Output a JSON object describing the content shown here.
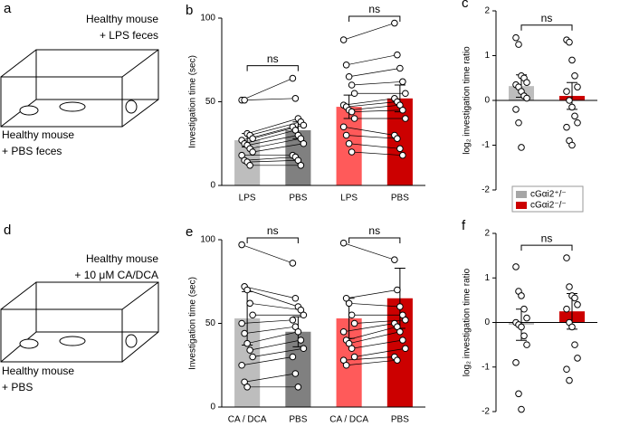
{
  "diagrams": [
    {
      "panel": "a",
      "top_label": [
        "Healthy mouse",
        "+ LPS feces"
      ],
      "bottom_label": [
        "Healthy mouse",
        "+ PBS feces"
      ]
    },
    {
      "panel": "d",
      "top_label": [
        "Healthy mouse",
        "+ 10 μM CA/DCA"
      ],
      "bottom_label": [
        "Healthy mouse",
        "+ PBS"
      ]
    }
  ],
  "chart_data": [
    {
      "panel": "b",
      "type": "bar",
      "y_label": "Investigation time (sec)",
      "categories": [
        "LPS",
        "PBS",
        "LPS",
        "PBS"
      ],
      "values": [
        27,
        33,
        47,
        52
      ],
      "errors": [
        4,
        5,
        7,
        8
      ],
      "colors": [
        "#bdbdbd",
        "#808080",
        "#ff5a5a",
        "#cc0000"
      ],
      "points": [
        [
          51,
          51,
          31,
          30,
          28,
          27,
          25,
          24,
          22,
          20,
          18,
          15,
          14,
          12
        ],
        [
          64,
          52,
          40,
          38,
          36,
          35,
          33,
          30,
          28,
          25,
          18,
          17,
          15,
          12
        ],
        [
          87,
          72,
          65,
          60,
          55,
          48,
          47,
          45,
          44,
          40,
          35,
          30,
          25,
          20
        ],
        [
          97,
          78,
          70,
          62,
          55,
          52,
          50,
          48,
          45,
          40,
          30,
          28,
          22,
          18
        ]
      ],
      "paired": true,
      "annotations": [
        "ns",
        "ns"
      ],
      "ylim": [
        0,
        100
      ],
      "yticks": [
        0,
        50,
        100
      ]
    },
    {
      "panel": "c",
      "type": "bar",
      "y_label": "log₂ investigation time ratio",
      "categories": [
        null,
        null
      ],
      "values": [
        0.32,
        0.1
      ],
      "errors": [
        0.25,
        0.3
      ],
      "colors": [
        "#bdbdbd",
        "#cc0000"
      ],
      "points": [
        [
          1.4,
          1.25,
          0.55,
          0.5,
          0.4,
          0.35,
          0.3,
          0.2,
          0.1,
          0.05,
          -0.2,
          -0.5,
          -1.05
        ],
        [
          1.35,
          1.3,
          0.9,
          0.55,
          0.3,
          0.2,
          0,
          -0.15,
          -0.35,
          -0.5,
          -0.6,
          -0.9,
          -1.0
        ]
      ],
      "paired": false,
      "annotations": [
        "ns"
      ],
      "ylim": [
        -2,
        2
      ],
      "yticks": [
        -2,
        -1,
        0,
        1,
        2
      ],
      "legend": [
        {
          "name": "cGαi2⁺/⁻",
          "color": "#a6a6a6"
        },
        {
          "name": "cGαi2⁻/⁻",
          "color": "#cc0000"
        }
      ]
    },
    {
      "panel": "e",
      "type": "bar",
      "y_label": "Investigation time (sec)",
      "categories": [
        "CA / DCA",
        "PBS",
        "CA / DCA",
        "PBS"
      ],
      "values": [
        53,
        45,
        53,
        65
      ],
      "errors": [
        16,
        9,
        12,
        18
      ],
      "colors": [
        "#bdbdbd",
        "#808080",
        "#ff5a5a",
        "#cc0000"
      ],
      "points": [
        [
          97,
          72,
          70,
          62,
          55,
          50,
          44,
          38,
          34,
          30,
          25,
          15,
          12
        ],
        [
          86,
          65,
          60,
          58,
          55,
          52,
          48,
          45,
          40,
          35,
          30,
          20,
          12
        ],
        [
          98,
          65,
          62,
          55,
          50,
          45,
          40,
          38,
          35,
          30,
          28,
          25
        ],
        [
          88,
          70,
          60,
          55,
          52,
          50,
          48,
          45,
          40,
          35,
          30,
          28
        ]
      ],
      "paired": true,
      "annotations": [
        "ns",
        "ns"
      ],
      "ylim": [
        0,
        100
      ],
      "yticks": [
        0,
        50,
        100
      ]
    },
    {
      "panel": "f",
      "type": "bar",
      "y_label": "log₂ investigation time ratio",
      "categories": [
        null,
        null
      ],
      "values": [
        -0.05,
        0.25
      ],
      "errors": [
        0.35,
        0.4
      ],
      "colors": [
        "#bdbdbd",
        "#cc0000"
      ],
      "points": [
        [
          1.25,
          0.7,
          0.6,
          0.3,
          0.1,
          0,
          -0.05,
          -0.1,
          -0.3,
          -0.5,
          -0.9,
          -1.6,
          -1.95
        ],
        [
          1.45,
          0.8,
          0.6,
          0.55,
          0.4,
          0.3,
          0,
          -0.1,
          -0.5,
          -0.8,
          -1.05,
          -1.3
        ]
      ],
      "paired": false,
      "annotations": [
        "ns"
      ],
      "ylim": [
        -2,
        2
      ],
      "yticks": [
        -2,
        -1,
        0,
        1,
        2
      ]
    }
  ]
}
